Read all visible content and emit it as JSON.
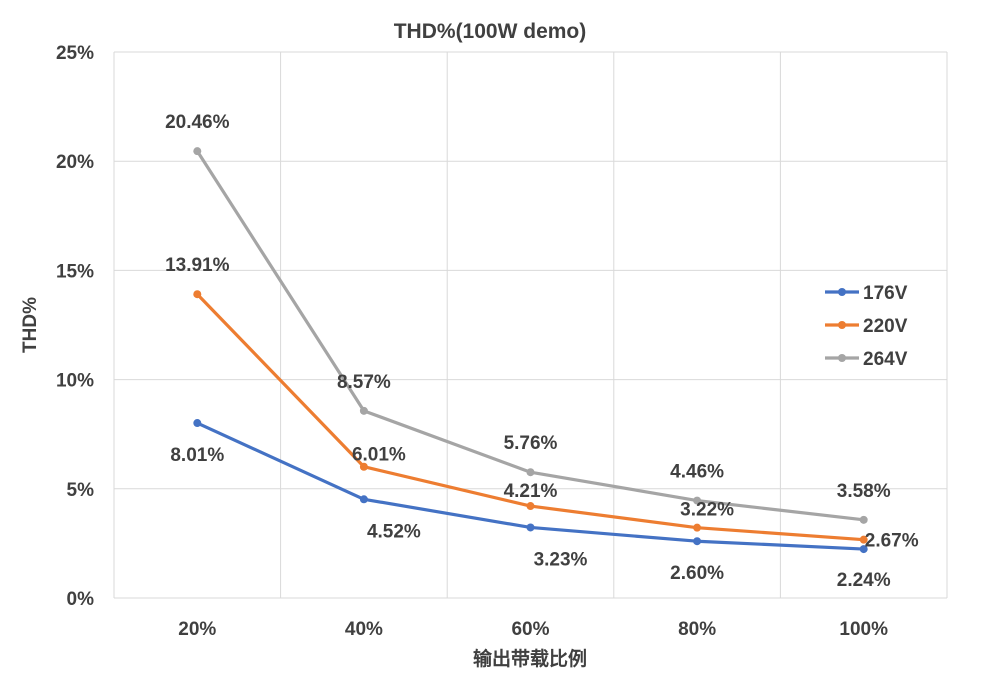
{
  "chart_data": {
    "type": "line",
    "title": "THD%(100W demo)",
    "xlabel": "输出带载比例",
    "ylabel": "THD%",
    "categories": [
      "20%",
      "40%",
      "60%",
      "80%",
      "100%"
    ],
    "ylim": [
      0,
      25
    ],
    "yticks": [
      "0%",
      "5%",
      "10%",
      "15%",
      "20%",
      "25%"
    ],
    "grid": true,
    "legend_position": "right",
    "series": [
      {
        "name": "176V",
        "color": "#4472c4",
        "values": [
          8.01,
          4.52,
          3.23,
          2.6,
          2.24
        ],
        "labels": [
          "8.01%",
          "4.52%",
          "3.23%",
          "2.60%",
          "2.24%"
        ]
      },
      {
        "name": "220V",
        "color": "#ed7d31",
        "values": [
          13.91,
          6.01,
          4.21,
          3.22,
          2.67
        ],
        "labels": [
          "13.91%",
          "6.01%",
          "4.21%",
          "3.22%",
          "2.67%"
        ]
      },
      {
        "name": "264V",
        "color": "#a5a5a5",
        "values": [
          20.46,
          8.57,
          5.76,
          4.46,
          3.58
        ],
        "labels": [
          "20.46%",
          "8.57%",
          "5.76%",
          "4.46%",
          "3.58%"
        ]
      }
    ]
  }
}
